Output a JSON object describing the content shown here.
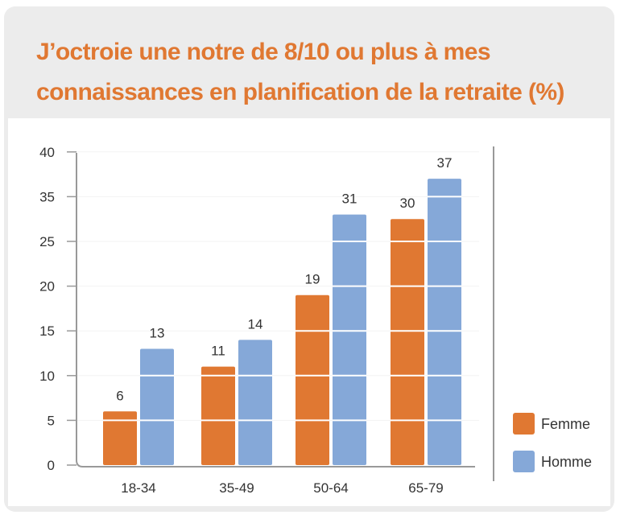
{
  "chart_data": {
    "type": "bar",
    "title": "J’octroie une notre de 8/10 ou plus à mes connaissances en planification de la retraite (%)",
    "xlabel": "",
    "ylabel": "",
    "categories": [
      "18-34",
      "35-49",
      "50-64",
      "65-79"
    ],
    "series": [
      {
        "name": "Femme",
        "values": [
          6,
          11,
          19,
          30
        ],
        "color": "#e07832"
      },
      {
        "name": "Homme",
        "values": [
          13,
          14,
          31,
          37
        ],
        "color": "#85a8d8"
      }
    ],
    "y_tick_labels": [
      "0",
      "5",
      "10",
      "15",
      "20",
      "25",
      "35",
      "40"
    ],
    "ylim": [
      0,
      40
    ],
    "grid": true,
    "data_labels": true,
    "legend_position": "bottom-right"
  }
}
